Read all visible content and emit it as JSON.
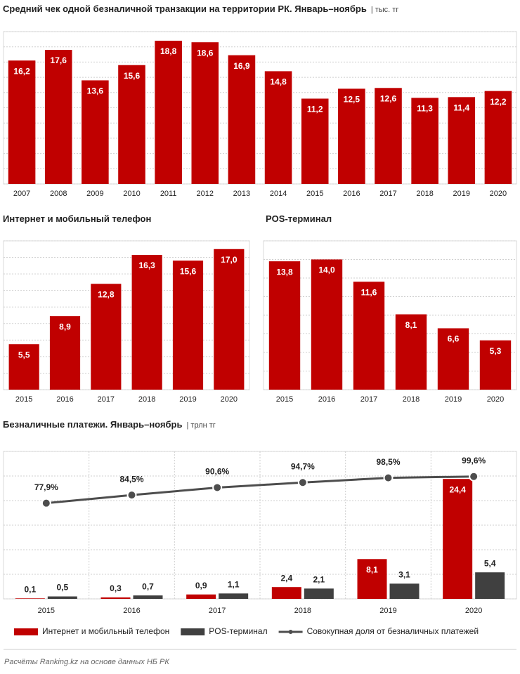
{
  "chart_data": [
    {
      "type": "bar",
      "title": "Средний чек одной безналичной транзакции на территории РК. Январь–ноябрь",
      "subtitle": "| тыс. тг",
      "categories": [
        "2007",
        "2008",
        "2009",
        "2010",
        "2011",
        "2012",
        "2013",
        "2014",
        "2015",
        "2016",
        "2017",
        "2018",
        "2019",
        "2020"
      ],
      "values": [
        16.2,
        17.6,
        13.6,
        15.6,
        18.8,
        18.6,
        16.9,
        14.8,
        11.2,
        12.5,
        12.6,
        11.3,
        11.4,
        12.2
      ],
      "value_labels": [
        "16,2",
        "17,6",
        "13,6",
        "15,6",
        "18,8",
        "18,6",
        "16,9",
        "14,8",
        "11,2",
        "12,5",
        "12,6",
        "11,3",
        "11,4",
        "12,2"
      ],
      "color": "#c00000",
      "ylim": [
        0,
        20
      ],
      "yticks": [
        0,
        2,
        4,
        6,
        8,
        10,
        12,
        14,
        16,
        18,
        20
      ],
      "grid": true
    },
    {
      "type": "bar",
      "title": "Интернет и мобильный телефон",
      "categories": [
        "2015",
        "2016",
        "2017",
        "2018",
        "2019",
        "2020"
      ],
      "values": [
        5.5,
        8.9,
        12.8,
        16.3,
        15.6,
        17.0
      ],
      "value_labels": [
        "5,5",
        "8,9",
        "12,8",
        "16,3",
        "15,6",
        "17,0"
      ],
      "color": "#c00000",
      "ylim": [
        0,
        18
      ],
      "yticks": [
        0,
        2,
        4,
        6,
        8,
        10,
        12,
        14,
        16,
        18
      ],
      "grid": true
    },
    {
      "type": "bar",
      "title": "POS-терминал",
      "categories": [
        "2015",
        "2016",
        "2017",
        "2018",
        "2019",
        "2020"
      ],
      "values": [
        13.8,
        14.0,
        11.6,
        8.1,
        6.6,
        5.3
      ],
      "value_labels": [
        "13,8",
        "14,0",
        "11,6",
        "8,1",
        "6,6",
        "5,3"
      ],
      "color": "#c00000",
      "ylim": [
        0,
        16
      ],
      "yticks": [
        0,
        2,
        4,
        6,
        8,
        10,
        12,
        14,
        16
      ],
      "grid": true
    },
    {
      "type": "grouped-bar-line",
      "title": "Безналичные платежи. Январь–ноябрь",
      "subtitle": "| трлн тг",
      "categories": [
        "2015",
        "2016",
        "2017",
        "2018",
        "2019",
        "2020"
      ],
      "series": [
        {
          "name": "Интернет и мобильный телефон",
          "color": "#c00000",
          "values": [
            0.1,
            0.3,
            0.9,
            2.4,
            8.1,
            24.4
          ],
          "value_labels": [
            "0,1",
            "0,3",
            "0,9",
            "2,4",
            "8,1",
            "24,4"
          ]
        },
        {
          "name": "POS-терминал",
          "color": "#404040",
          "values": [
            0.5,
            0.7,
            1.1,
            2.1,
            3.1,
            5.4
          ],
          "value_labels": [
            "0,5",
            "0,7",
            "1,1",
            "2,1",
            "3,1",
            "5,4"
          ]
        },
        {
          "name": "Совокупная доля от безналичных платежей",
          "color": "#4d4d4d",
          "type": "line",
          "axis": "y2",
          "values": [
            77.9,
            84.5,
            90.6,
            94.7,
            98.5,
            99.6
          ],
          "value_labels": [
            "77,9%",
            "84,5%",
            "90,6%",
            "94,7%",
            "98,5%",
            "99,6%"
          ]
        }
      ],
      "ylim": [
        0,
        30
      ],
      "yticks": [
        0,
        5,
        10,
        15,
        20,
        25,
        30
      ],
      "y2lim": [
        0,
        120
      ],
      "grid": true,
      "legend": "bottom"
    }
  ],
  "source": "Расчёты Ranking.kz на основе данных НБ РК"
}
